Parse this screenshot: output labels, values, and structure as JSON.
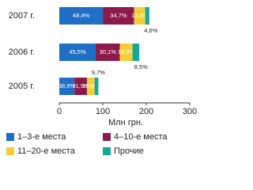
{
  "chart_data": {
    "type": "bar",
    "orientation": "horizontal",
    "stacked": true,
    "categories": [
      "2007 г.",
      "2006 г.",
      "2005 г."
    ],
    "series": [
      {
        "name": "1–3-е места",
        "color": "#1f6fc5",
        "values": [
          100.2,
          83.7,
          34.9
        ],
        "value_labels": [
          "48,4%",
          "45,5%",
          "38,8%"
        ]
      },
      {
        "name": "4–10-е места",
        "color": "#8c1a4b",
        "values": [
          71.8,
          55.4,
          28.7
        ],
        "value_labels": [
          "34,7%",
          "30,1%",
          "31,9%"
        ]
      },
      {
        "name": "11–20-е места",
        "color": "#f2cf3a",
        "values": [
          25.5,
          29.3,
          17.6
        ],
        "value_labels": [
          "12,3%",
          "15,9%",
          "19,6%"
        ]
      },
      {
        "name": "Прочие",
        "color": "#14a898",
        "values": [
          9.5,
          15.6,
          8.7
        ],
        "value_labels": [
          "4,6%",
          "8,5%",
          "9,7%"
        ]
      }
    ],
    "xlabel": "Млн грн.",
    "xlim": [
      0,
      300
    ],
    "xticks": [
      0,
      100,
      200,
      300
    ]
  }
}
